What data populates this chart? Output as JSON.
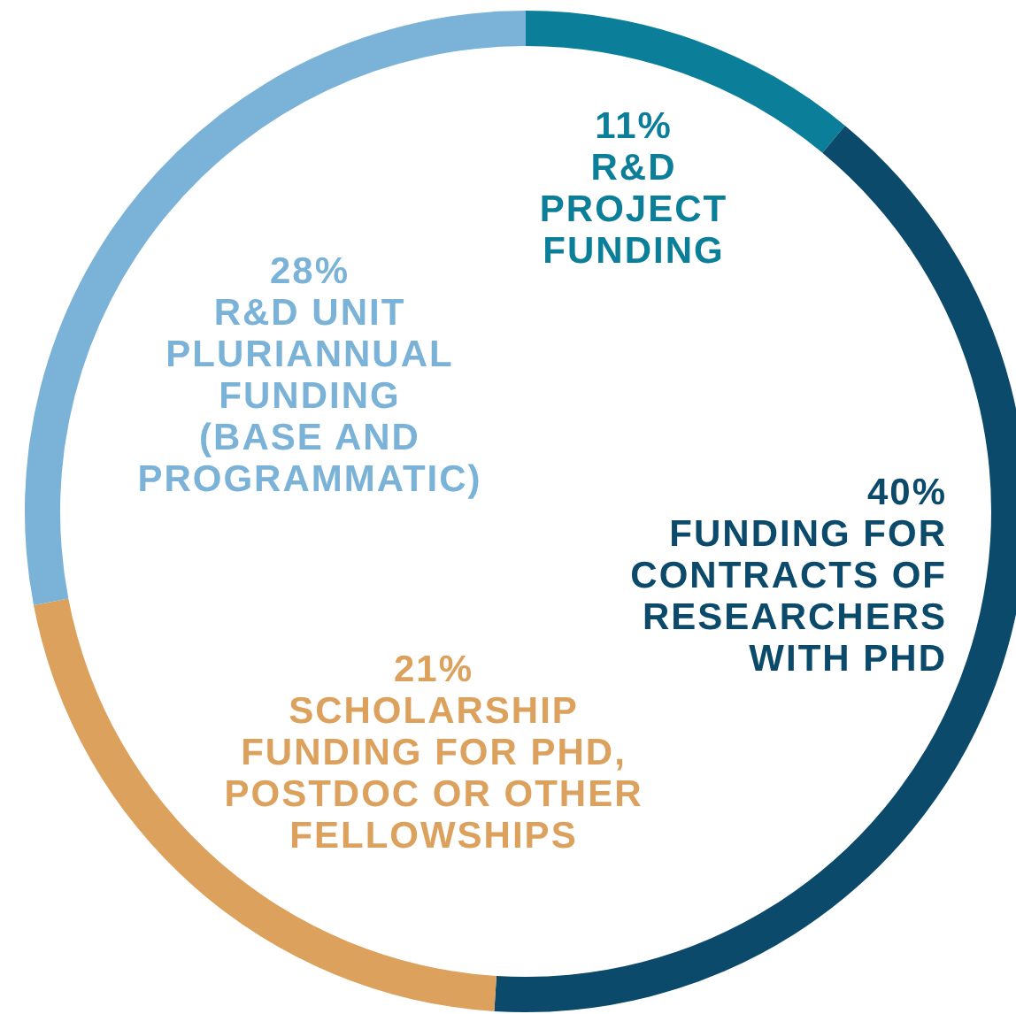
{
  "chart_data": {
    "type": "donut",
    "categories": [
      "R&D PROJECT FUNDING",
      "FUNDING FOR CONTRACTS OF RESEARCHERS WITH PHD",
      "SCHOLARSHIP FUNDING FOR PHD, POSTDOC OR OTHER FELLOWSHIPS",
      "R&D UNIT PLURIANNUAL FUNDING (BASE AND PROGRAMMATIC)"
    ],
    "values": [
      11,
      40,
      21,
      28
    ],
    "colors": [
      "#0b7f99",
      "#0b4a6b",
      "#dda15e",
      "#7ab2d8"
    ],
    "value_labels": [
      "11%",
      "40%",
      "21%",
      "28%"
    ]
  }
}
